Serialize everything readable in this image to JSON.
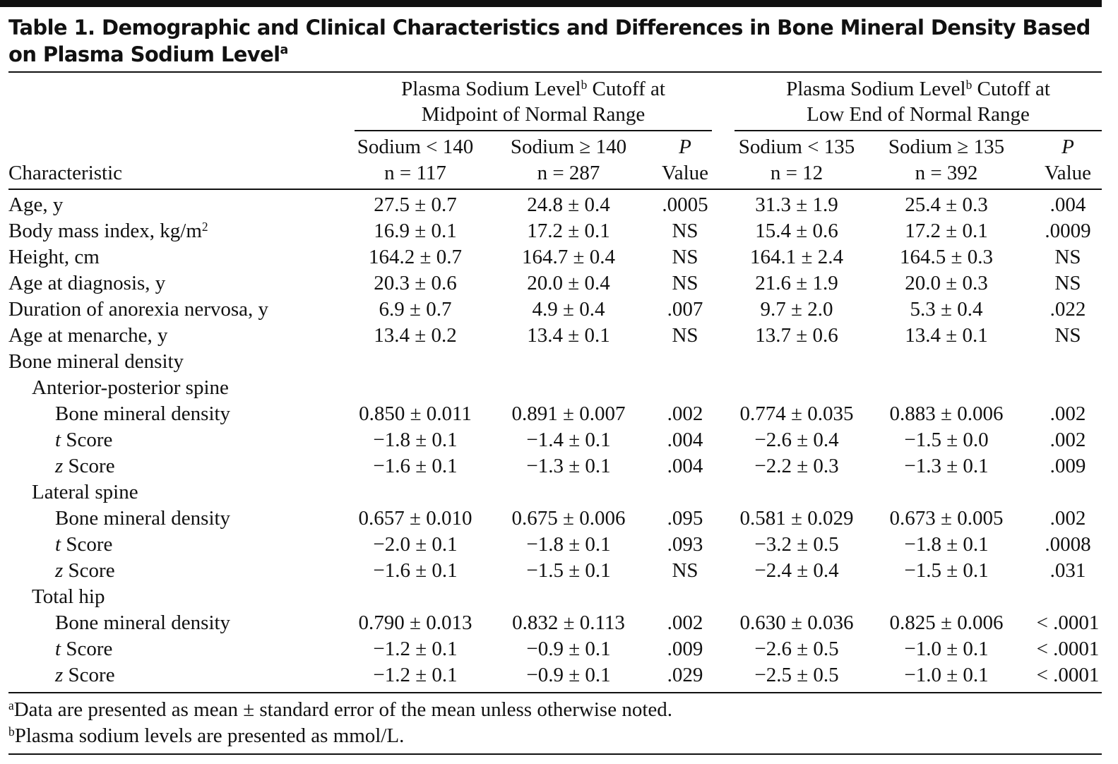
{
  "title": "Table 1. Demographic and Clinical Characteristics and Differences in Bone Mineral Density Based on Plasma Sodium Level",
  "title_sup": "a",
  "column_groups": [
    {
      "line1": "Plasma Sodium Level",
      "sup": "b",
      "line1_end": " Cutoff at",
      "line2": "Midpoint of Normal Range"
    },
    {
      "line1": "Plasma Sodium Level",
      "sup": "b",
      "line1_end": " Cutoff at",
      "line2": "Low End of Normal Range"
    }
  ],
  "stub_header": "Characteristic",
  "columns": [
    {
      "line1": "Sodium < 140",
      "line2": "n = 117"
    },
    {
      "line1": "Sodium ≥ 140",
      "line2": "n = 287"
    },
    {
      "line1": "P",
      "line2": "Value"
    },
    {
      "line1": "Sodium < 135",
      "line2": "n = 12"
    },
    {
      "line1": "Sodium ≥ 135",
      "line2": "n = 392"
    },
    {
      "line1": "P",
      "line2": "Value"
    }
  ],
  "rows": [
    {
      "label": "Age, y",
      "cells": [
        "27.5 ± 0.7",
        "24.8 ± 0.4",
        ".0005",
        "31.3 ± 1.9",
        "25.4 ± 0.3",
        ".004"
      ]
    },
    {
      "label": "Body mass index, kg/m",
      "label_sup": "2",
      "cells": [
        "16.9 ± 0.1",
        "17.2 ± 0.1",
        "NS",
        "15.4 ± 0.6",
        "17.2 ± 0.1",
        ".0009"
      ]
    },
    {
      "label": "Height, cm",
      "cells": [
        "164.2 ± 0.7",
        "164.7 ± 0.4",
        "NS",
        "164.1 ± 2.4",
        "164.5 ± 0.3",
        "NS"
      ]
    },
    {
      "label": "Age at diagnosis, y",
      "cells": [
        "20.3 ± 0.6",
        "20.0 ± 0.4",
        "NS",
        "21.6 ± 1.9",
        "20.0 ± 0.3",
        "NS"
      ]
    },
    {
      "label": "Duration of anorexia nervosa, y",
      "cells": [
        "6.9 ± 0.7",
        "4.9 ± 0.4",
        ".007",
        "9.7 ± 2.0",
        "5.3 ± 0.4",
        ".022"
      ]
    },
    {
      "label": "Age at menarche, y",
      "cells": [
        "13.4 ± 0.2",
        "13.4 ± 0.1",
        "NS",
        "13.7 ± 0.6",
        "13.4 ± 0.1",
        "NS"
      ]
    },
    {
      "label": "Bone mineral density",
      "groups": [
        {
          "label": "Anterior-posterior spine",
          "rows": [
            {
              "label": "Bone mineral density",
              "cells": [
                "0.850 ± 0.011",
                "0.891 ± 0.007",
                ".002",
                "0.774 ± 0.035",
                "0.883 ± 0.006",
                ".002"
              ]
            },
            {
              "label": "t Score",
              "cells": [
                "−1.8 ± 0.1",
                "−1.4 ± 0.1",
                ".004",
                "−2.6 ± 0.4",
                "−1.5 ± 0.0",
                ".002"
              ]
            },
            {
              "label": "z Score",
              "cells": [
                "−1.6 ± 0.1",
                "−1.3 ± 0.1",
                ".004",
                "−2.2 ± 0.3",
                "−1.3 ± 0.1",
                ".009"
              ]
            }
          ]
        },
        {
          "label": "Lateral spine",
          "rows": [
            {
              "label": "Bone mineral density",
              "cells": [
                "0.657 ± 0.010",
                "0.675 ± 0.006",
                ".095",
                "0.581 ± 0.029",
                "0.673 ± 0.005",
                ".002"
              ]
            },
            {
              "label": "t Score",
              "cells": [
                "−2.0 ± 0.1",
                "−1.8 ± 0.1",
                ".093",
                "−3.2 ± 0.5",
                "−1.8 ± 0.1",
                ".0008"
              ]
            },
            {
              "label": "z Score",
              "cells": [
                "−1.6 ± 0.1",
                "−1.5 ± 0.1",
                "NS",
                "−2.4 ± 0.4",
                "−1.5 ± 0.1",
                ".031"
              ]
            }
          ]
        },
        {
          "label": "Total hip",
          "rows": [
            {
              "label": "Bone mineral density",
              "cells": [
                "0.790 ± 0.013",
                "0.832 ± 0.113",
                ".002",
                "0.630 ± 0.036",
                "0.825 ± 0.006",
                "< .0001"
              ]
            },
            {
              "label": "t Score",
              "cells": [
                "−1.2 ± 0.1",
                "−0.9 ± 0.1",
                ".009",
                "−2.6 ± 0.5",
                "−1.0 ± 0.1",
                "< .0001"
              ]
            },
            {
              "label": "z Score",
              "cells": [
                "−1.2 ± 0.1",
                "−0.9 ± 0.1",
                ".029",
                "−2.5 ± 0.5",
                "−1.0 ± 0.1",
                "< .0001"
              ]
            }
          ]
        }
      ]
    }
  ],
  "footnotes": [
    {
      "mark": "a",
      "text": "Data are presented as mean ± standard error of the mean unless otherwise noted."
    },
    {
      "mark": "b",
      "text": "Plasma sodium levels are presented as mmol/L."
    }
  ]
}
